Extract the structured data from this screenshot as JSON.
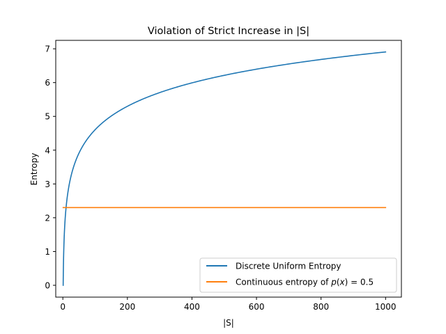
{
  "chart_data": {
    "type": "line",
    "title": "Violation of Strict Increase in |S|",
    "xlabel": "|S|",
    "ylabel": "Entropy",
    "xlim": [
      -22,
      1049
    ],
    "ylim": [
      -0.35,
      7.25
    ],
    "xticks": [
      0,
      200,
      400,
      600,
      800,
      1000
    ],
    "yticks": [
      0,
      1,
      2,
      3,
      4,
      5,
      6,
      7
    ],
    "grid": false,
    "legend_position": "lower-right",
    "series": [
      {
        "name": "Discrete Uniform Entropy",
        "color": "#1f77b4",
        "function": "ln(x)",
        "x": [
          1,
          2,
          3,
          5,
          8,
          10,
          15,
          20,
          30,
          40,
          50,
          75,
          100,
          150,
          200,
          250,
          300,
          400,
          500,
          600,
          700,
          800,
          900,
          1000
        ],
        "values": [
          0,
          0.69,
          1.1,
          1.61,
          2.08,
          2.3,
          2.71,
          3.0,
          3.4,
          3.69,
          3.91,
          4.32,
          4.61,
          5.01,
          5.3,
          5.52,
          5.7,
          5.99,
          6.21,
          6.4,
          6.55,
          6.68,
          6.8,
          6.91
        ]
      },
      {
        "name": "Continuous entropy of p(x) = 0.5",
        "color": "#ff7f0e",
        "x": [
          1,
          1000
        ],
        "values": [
          2.3,
          2.3
        ]
      }
    ]
  }
}
